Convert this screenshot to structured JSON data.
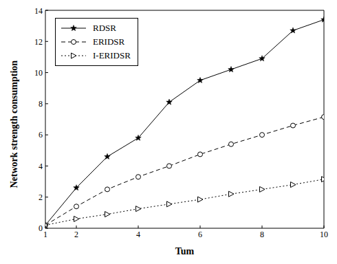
{
  "chart_data": {
    "type": "line",
    "x_label": "Tum",
    "y_label": "Network strength consumption",
    "x": [
      1,
      2,
      3,
      4,
      5,
      6,
      7,
      8,
      9,
      10
    ],
    "xlim": [
      1,
      10
    ],
    "xticks": [
      1,
      2,
      4,
      6,
      8,
      10
    ],
    "ylim": [
      0,
      14
    ],
    "yticks": [
      0,
      2,
      4,
      6,
      8,
      10,
      12,
      14
    ],
    "grid": false,
    "legend": "upper left",
    "series": [
      {
        "name": "RDSR",
        "color": "#000000",
        "marker": "star",
        "line_style": "solid",
        "values": [
          0.2,
          2.6,
          4.6,
          5.8,
          8.1,
          9.5,
          10.2,
          10.9,
          12.7,
          13.4
        ]
      },
      {
        "name": "ERIDSR",
        "color": "#000000",
        "marker": "circle",
        "line_style": "dashed",
        "values": [
          0.2,
          1.4,
          2.5,
          3.3,
          4.0,
          4.75,
          5.4,
          6.0,
          6.6,
          7.15
        ]
      },
      {
        "name": "I-ERIDSR",
        "color": "#000000",
        "marker": "triangle-right",
        "line_style": "dotted",
        "values": [
          0.2,
          0.6,
          0.9,
          1.25,
          1.55,
          1.85,
          2.2,
          2.5,
          2.8,
          3.15
        ]
      }
    ]
  }
}
